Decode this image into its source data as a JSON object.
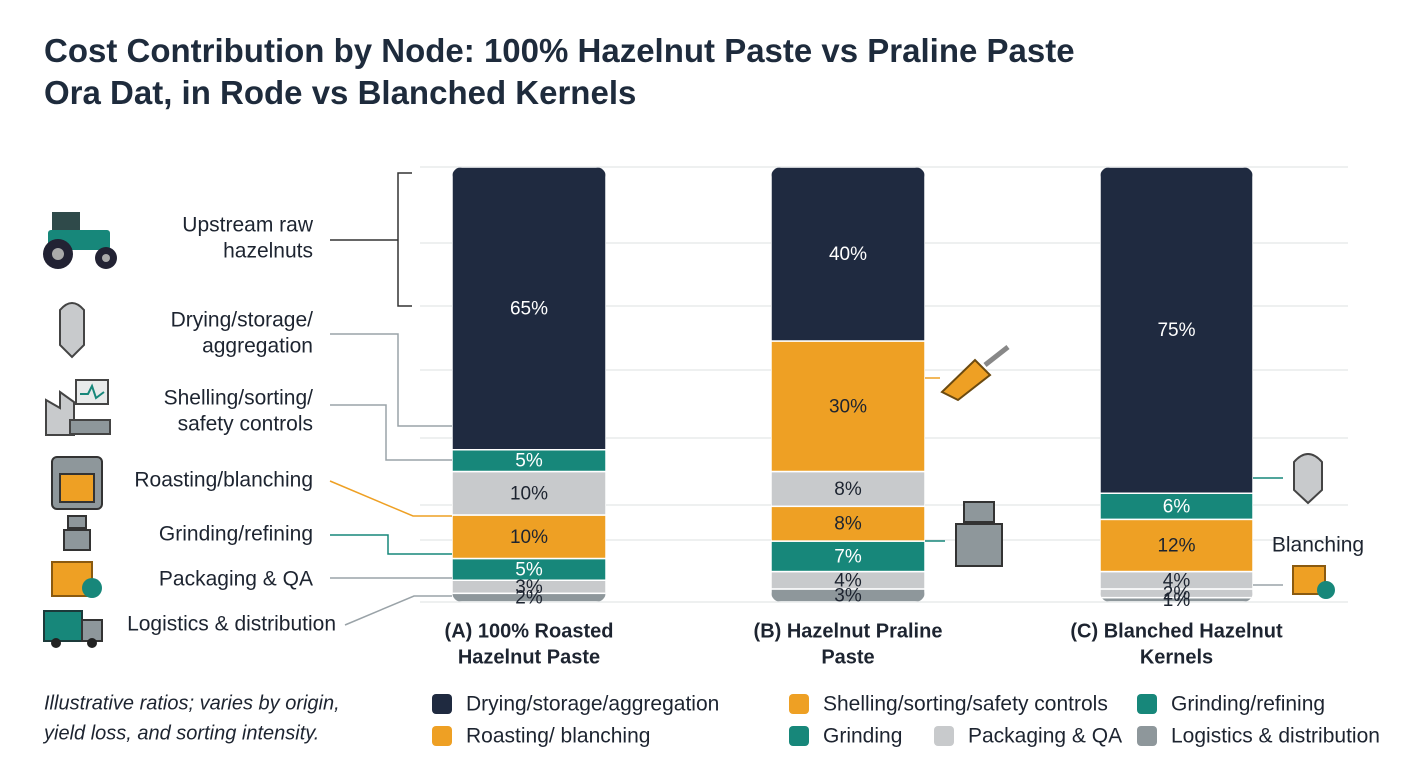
{
  "chart_data": {
    "type": "stacked_bar",
    "title": [
      "Cost Contribution by Node: 100% Hazelnut Paste vs Praline Paste",
      "Ora Dat, in Rode vs Blanched Kernels"
    ],
    "categories": [
      [
        "(A) 100% Roasted",
        "Hazelnut Paste"
      ],
      [
        "(B) Hazelnut Praline",
        "Paste"
      ],
      [
        "(C) Blanched Hazelnut",
        "Kernels"
      ]
    ],
    "ylim": [
      0,
      100
    ],
    "series": [
      {
        "name": [
          "Logistics & distribution"
        ],
        "colors": [
          "#8e979b",
          "#8e979b",
          "#8e979b"
        ],
        "values": [
          2,
          3,
          1
        ],
        "value_labels": [
          "2%",
          "3%",
          "1%"
        ]
      },
      {
        "name": [
          "Packaging & QA"
        ],
        "colors": [
          "#c8cacc",
          "#c8cacc",
          "#c8cacc"
        ],
        "values": [
          3,
          4,
          2
        ],
        "value_labels": [
          "3%",
          "4%",
          "2%"
        ]
      },
      {
        "name": [
          "Grinding/refining"
        ],
        "colors": [
          "#17877a",
          "#17877a",
          "#c8cacc"
        ],
        "values": [
          5,
          7,
          4
        ],
        "value_labels": [
          "5%",
          "7%",
          "4%"
        ]
      },
      {
        "name": [
          "Roasting/blanching"
        ],
        "colors": [
          "#eea024",
          "#eea024",
          "#eea024"
        ],
        "values": [
          10,
          8,
          12
        ],
        "value_labels": [
          "10%",
          "8%",
          "12%"
        ]
      },
      {
        "name": [
          "Shelling/sorting/",
          "safety controls"
        ],
        "colors": [
          "#c8cacc",
          "#c8cacc",
          "#c8cacc"
        ],
        "values": [
          10,
          8,
          null
        ],
        "value_labels": [
          "10%",
          "8%",
          null
        ]
      },
      {
        "name": [
          "Drying/storage/",
          "aggregation"
        ],
        "colors": [
          "#17877a",
          "#eea024",
          "#17877a"
        ],
        "values": [
          5,
          30,
          6
        ],
        "value_labels": [
          "5%",
          "30%",
          "6%"
        ]
      },
      {
        "name": [
          "Upstream raw",
          "hazelnuts"
        ],
        "colors": [
          "#1f2a40",
          "#1f2a40",
          "#1f2a40"
        ],
        "values": [
          65,
          40,
          75
        ],
        "value_labels": [
          "65%",
          "40%",
          "75%"
        ]
      }
    ],
    "legend": [
      {
        "name": "Drying/storage/aggregation",
        "color": "#1f2a40"
      },
      {
        "name": "Shelling/sorting/safety controls",
        "color": "#eea024"
      },
      {
        "name": "Grinding/refining",
        "color": "#17877a"
      },
      {
        "name": "Roasting/ blanching",
        "color": "#eea024"
      },
      {
        "name": "Grinding",
        "color": "#17877a"
      },
      {
        "name": "Packaging & QA",
        "color": "#c8cacc"
      },
      {
        "name": "Logistics & distribution",
        "color": "#8e979b"
      }
    ],
    "annotation": "Blanching",
    "note": [
      "Illustrative ratios; varies by origin,",
      "yield loss, and sorting intensity."
    ]
  }
}
